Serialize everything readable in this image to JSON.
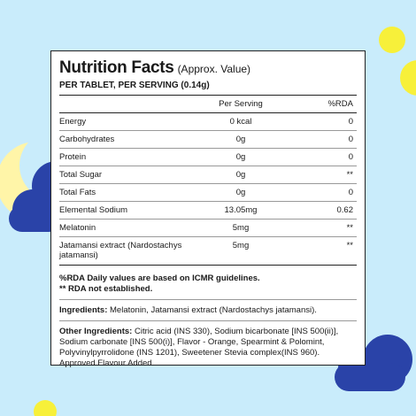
{
  "header": {
    "title": "Nutrition Facts",
    "title_note": "(Approx. Value)",
    "serving": "PER TABLET, PER SERVING (0.14g)"
  },
  "table": {
    "columns": [
      "",
      "Per Serving",
      "%RDA"
    ],
    "rows": [
      {
        "name": "Energy",
        "per_serving": "0 kcal",
        "rda": "0"
      },
      {
        "name": "Carbohydrates",
        "per_serving": "0g",
        "rda": "0"
      },
      {
        "name": "Protein",
        "per_serving": "0g",
        "rda": "0"
      },
      {
        "name": "Total Sugar",
        "per_serving": "0g",
        "rda": "**"
      },
      {
        "name": "Total Fats",
        "per_serving": "0g",
        "rda": "0"
      },
      {
        "name": "Elemental Sodium",
        "per_serving": "13.05mg",
        "rda": "0.62"
      },
      {
        "name": "Melatonin",
        "per_serving": "5mg",
        "rda": "**"
      },
      {
        "name": "Jatamansi extract (Nardostachys jatamansi)",
        "per_serving": "5mg",
        "rda": "**"
      }
    ]
  },
  "notes": {
    "line1": "%RDA Daily values are based on ICMR guidelines.",
    "line2": "** RDA not established."
  },
  "ingredients": {
    "label": "Ingredients:",
    "text": "Melatonin, Jatamansi extract (Nardostachys jatamansi)."
  },
  "other_ingredients": {
    "label": "Other Ingredients:",
    "text": "Citric acid (INS 330), Sodium bicarbonate [INS 500(ii)], Sodium carbonate [INS 500(i)], Flavor - Orange, Spearmint & Polomint, Polyvinylpyrrolidone (INS 1201), Sweetener Stevia complex(INS 960). Approved Flavour Added."
  },
  "colors": {
    "background": "#c9ecfb",
    "cloud": "#2a43a8",
    "dot": "#f7f03a",
    "moon": "#fff5a8"
  }
}
